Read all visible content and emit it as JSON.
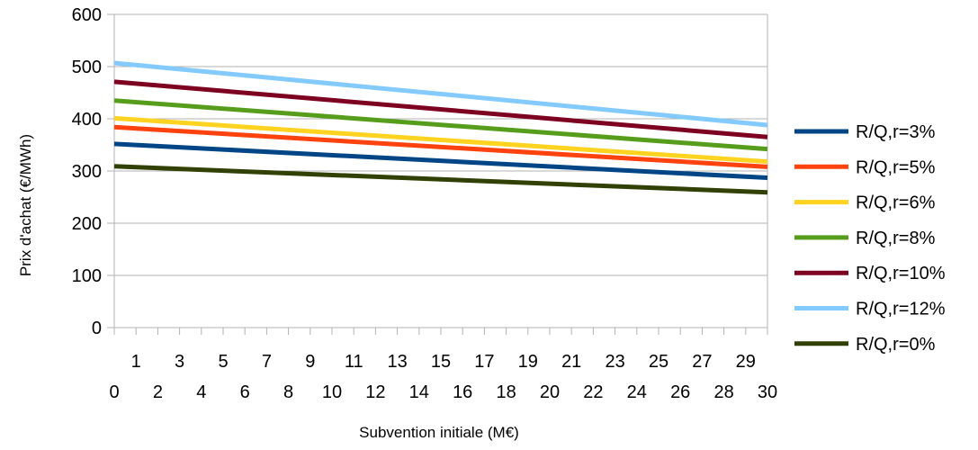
{
  "chart_data": {
    "type": "line",
    "xlabel": "Subvention initiale (M€)",
    "ylabel": "Prix d'achat (€/MWh)",
    "xlim": [
      0,
      30
    ],
    "ylim": [
      0,
      600
    ],
    "yticks": [
      "0",
      "100",
      "200",
      "300",
      "400",
      "500",
      "600"
    ],
    "xticks_upper": [
      "1",
      "3",
      "5",
      "7",
      "9",
      "11",
      "13",
      "15",
      "17",
      "19",
      "21",
      "23",
      "25",
      "27",
      "29"
    ],
    "xticks_lower": [
      "0",
      "2",
      "4",
      "6",
      "8",
      "10",
      "12",
      "14",
      "16",
      "18",
      "20",
      "22",
      "24",
      "26",
      "28",
      "30"
    ],
    "grid": "horizontal",
    "legend_position": "right",
    "series": [
      {
        "name": "R/Q,r=3%",
        "color": "#004586",
        "start": 352,
        "end": 287
      },
      {
        "name": "R/Q,r=5%",
        "color": "#ff420e",
        "start": 384,
        "end": 308
      },
      {
        "name": "R/Q,r=6%",
        "color": "#ffd320",
        "start": 401,
        "end": 318
      },
      {
        "name": "R/Q,r=8%",
        "color": "#579d1c",
        "start": 435,
        "end": 342
      },
      {
        "name": "R/Q,r=10%",
        "color": "#7e0021",
        "start": 471,
        "end": 365
      },
      {
        "name": "R/Q,r=12%",
        "color": "#83caff",
        "start": 507,
        "end": 388
      },
      {
        "name": "R/Q,r=0%",
        "color": "#314004",
        "start": 309,
        "end": 259
      }
    ]
  }
}
